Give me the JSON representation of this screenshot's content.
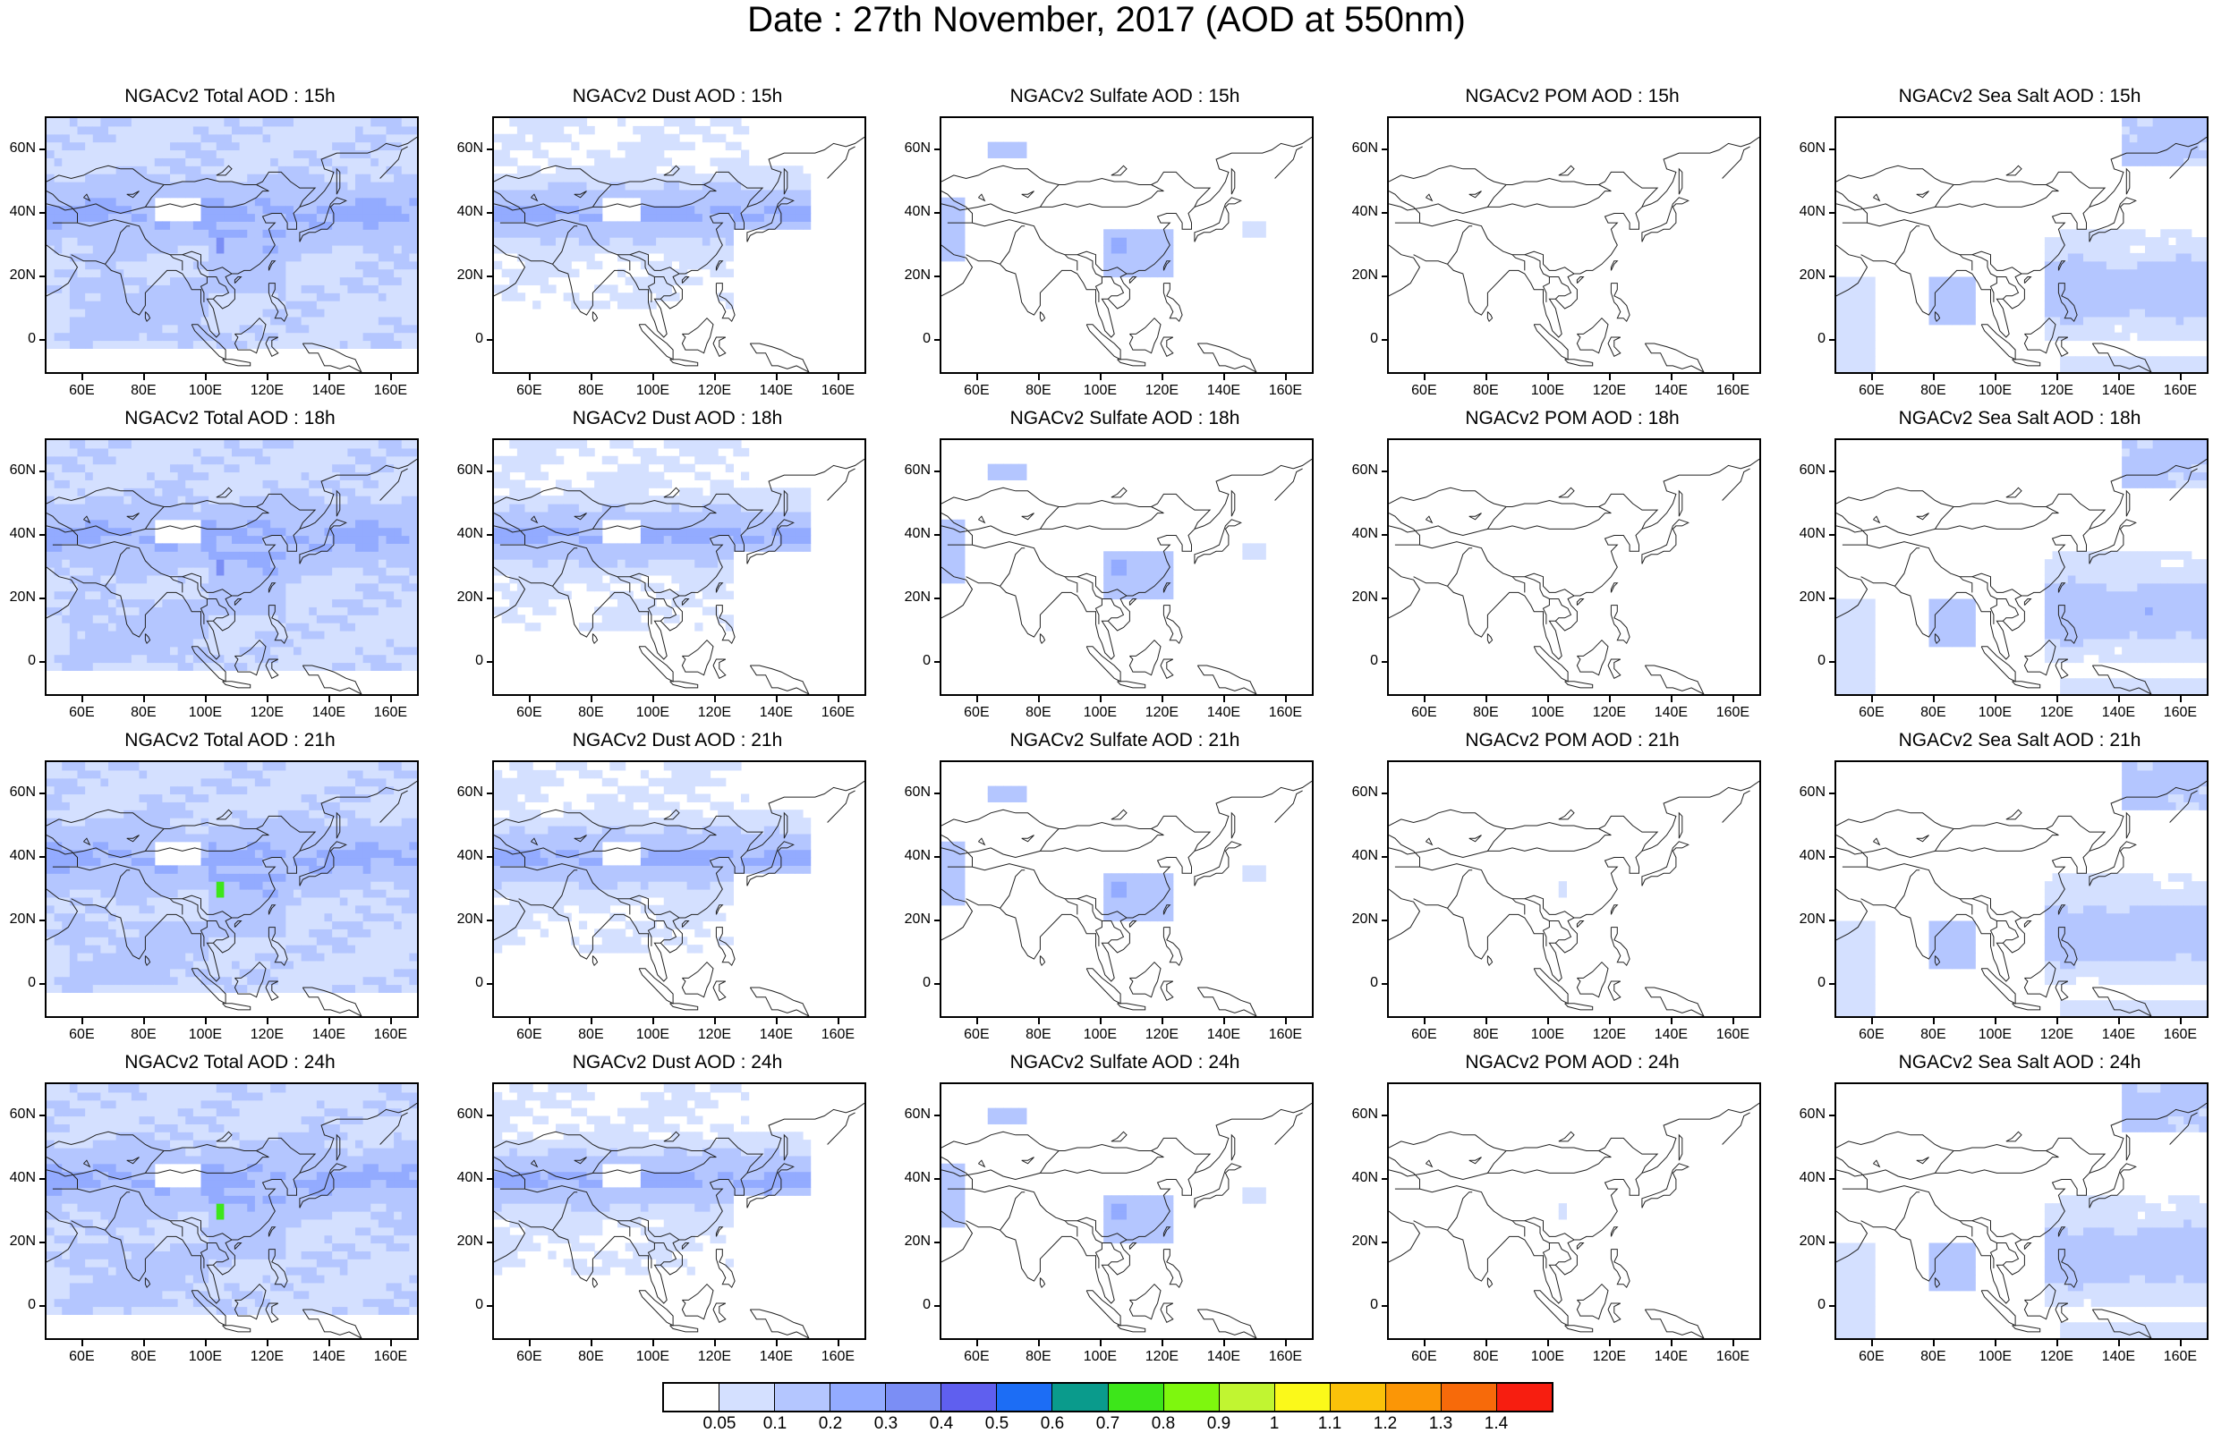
{
  "title": "Date : 27th November, 2017 (AOD at 550nm)",
  "lat_ticks": [
    "60N",
    "40N",
    "20N",
    "0"
  ],
  "lon_ticks": [
    "60E",
    "80E",
    "100E",
    "120E",
    "140E",
    "160E"
  ],
  "panels": [
    {
      "title": "NGACv2 Total AOD : 15h",
      "species": "total",
      "hour": "15h"
    },
    {
      "title": "NGACv2 Dust AOD : 15h",
      "species": "dust",
      "hour": "15h"
    },
    {
      "title": "NGACv2 Sulfate AOD : 15h",
      "species": "sulfate",
      "hour": "15h"
    },
    {
      "title": "NGACv2 POM AOD : 15h",
      "species": "pom",
      "hour": "15h"
    },
    {
      "title": "NGACv2 Sea Salt AOD : 15h",
      "species": "seasalt",
      "hour": "15h"
    },
    {
      "title": "NGACv2 Total AOD : 18h",
      "species": "total",
      "hour": "18h"
    },
    {
      "title": "NGACv2 Dust AOD : 18h",
      "species": "dust",
      "hour": "18h"
    },
    {
      "title": "NGACv2 Sulfate AOD : 18h",
      "species": "sulfate",
      "hour": "18h"
    },
    {
      "title": "NGACv2 POM AOD : 18h",
      "species": "pom",
      "hour": "18h"
    },
    {
      "title": "NGACv2 Sea Salt AOD : 18h",
      "species": "seasalt",
      "hour": "18h"
    },
    {
      "title": "NGACv2 Total AOD : 21h",
      "species": "total",
      "hour": "21h"
    },
    {
      "title": "NGACv2 Dust AOD : 21h",
      "species": "dust",
      "hour": "21h"
    },
    {
      "title": "NGACv2 Sulfate AOD : 21h",
      "species": "sulfate",
      "hour": "21h"
    },
    {
      "title": "NGACv2 POM AOD : 21h",
      "species": "pom",
      "hour": "21h"
    },
    {
      "title": "NGACv2 Sea Salt AOD : 21h",
      "species": "seasalt",
      "hour": "21h"
    },
    {
      "title": "NGACv2 Total AOD : 24h",
      "species": "total",
      "hour": "24h"
    },
    {
      "title": "NGACv2 Dust AOD : 24h",
      "species": "dust",
      "hour": "24h"
    },
    {
      "title": "NGACv2 Sulfate AOD : 24h",
      "species": "sulfate",
      "hour": "24h"
    },
    {
      "title": "NGACv2 POM AOD : 24h",
      "species": "pom",
      "hour": "24h"
    },
    {
      "title": "NGACv2 Sea Salt  AOD : 24h",
      "species": "seasalt",
      "hour": "24h"
    }
  ],
  "colorbar": {
    "labels": [
      "0.05",
      "0.1",
      "0.2",
      "0.3",
      "0.4",
      "0.5",
      "0.6",
      "0.7",
      "0.8",
      "0.9",
      "1",
      "1.1",
      "1.2",
      "1.3",
      "1.4"
    ],
    "colors": [
      "#ffffff",
      "#d4e0ff",
      "#b4c6ff",
      "#93abff",
      "#7b8ef5",
      "#5f5fef",
      "#1c6df5",
      "#0a9b8c",
      "#3de61a",
      "#7ef70e",
      "#c1f531",
      "#fbf91a",
      "#fbc20a",
      "#fb9606",
      "#f76a0a",
      "#f71e10"
    ]
  },
  "chart_data": {
    "type": "heatmap",
    "lon_range": [
      48,
      168
    ],
    "lat_range": [
      -10,
      70
    ],
    "description_levels": {
      "total": {
        "background": 0.1,
        "belt": 0.2,
        "hotspot": 0.75
      },
      "dust": {
        "background": 0.1,
        "belt": 0.2
      },
      "sulfate": {
        "background": 0.05,
        "belt": 0.1,
        "hotspot": 0.3
      },
      "pom": {
        "background": 0.05,
        "belt": 0.1
      },
      "seasalt": {
        "background": 0.05,
        "belt": 0.1,
        "hotspot": 0.2
      }
    }
  }
}
